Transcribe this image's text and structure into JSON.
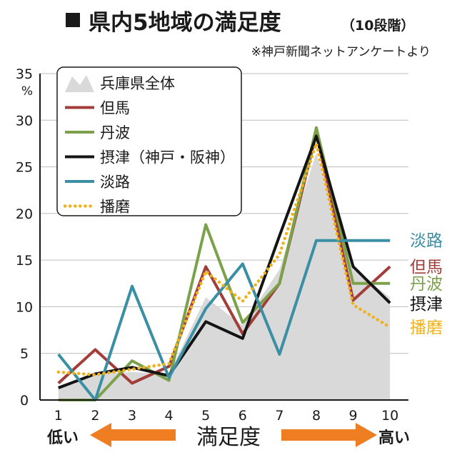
{
  "chart_data": {
    "type": "line",
    "title": "県内5地域の満足度",
    "title_suffix": "（10段階）",
    "subtitle": "※神戸新聞ネットアンケートより",
    "ylabel": "%",
    "ylim": [
      0,
      35
    ],
    "yticks": [
      0,
      5,
      10,
      15,
      20,
      25,
      30,
      35
    ],
    "x": [
      1,
      2,
      3,
      4,
      5,
      6,
      7,
      8,
      9,
      10
    ],
    "x_range": [
      0.5,
      10.5
    ],
    "xlabel": "満足度",
    "xlabel_low": "低い",
    "xlabel_high": "高い",
    "grid": "horizontal",
    "legend_position": "top-left",
    "series": [
      {
        "name": "兵庫県全体",
        "kind": "area",
        "color": "#d9d9d9",
        "values": [
          1.5,
          2.8,
          3.0,
          2.8,
          11.0,
          8.0,
          14.0,
          26.5,
          14.0,
          11.0
        ]
      },
      {
        "name": "但馬",
        "kind": "line",
        "color": "#a33d3a",
        "end_label": "但馬",
        "values": [
          1.8,
          5.4,
          1.8,
          3.6,
          14.3,
          7.1,
          12.5,
          28.6,
          10.7,
          14.3
        ]
      },
      {
        "name": "丹波",
        "kind": "line",
        "color": "#7ba24a",
        "end_label": "丹波",
        "values": [
          0.0,
          0.0,
          4.2,
          2.1,
          18.8,
          8.3,
          12.5,
          29.2,
          12.5,
          12.5
        ]
      },
      {
        "name": "摂津（神戸・阪神）",
        "kind": "line",
        "color": "#141414",
        "end_label": "摂津",
        "values": [
          1.3,
          2.8,
          3.5,
          2.6,
          8.4,
          6.6,
          17.6,
          28.3,
          14.3,
          10.4
        ]
      },
      {
        "name": "淡路",
        "kind": "line",
        "color": "#3a8fa5",
        "end_label": "淡路",
        "values": [
          4.9,
          0.0,
          12.2,
          2.4,
          9.8,
          14.6,
          4.9,
          17.1,
          17.1,
          17.1
        ]
      },
      {
        "name": "播磨",
        "kind": "dotted",
        "color": "#f0b21c",
        "end_label": "播磨",
        "values": [
          3.0,
          2.7,
          3.3,
          3.9,
          13.8,
          10.6,
          15.6,
          27.5,
          10.2,
          7.8
        ]
      }
    ]
  }
}
